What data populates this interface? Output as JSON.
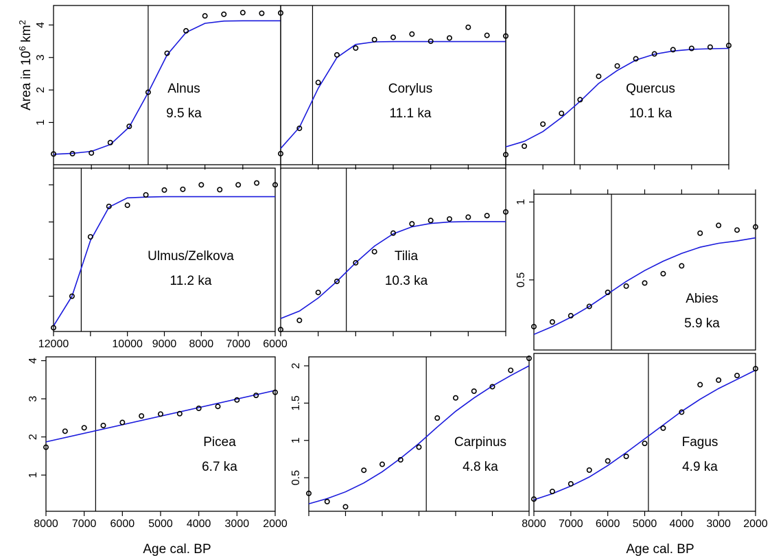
{
  "figure": {
    "ylabel_main": "Area in 10",
    "ylabel_exp": "6",
    "ylabel_unit": "km",
    "ylabel_unit_exp": "2",
    "xlabel_left": "Age cal. BP",
    "xlabel_right": "Age cal. BP"
  },
  "colors": {
    "fit": "#1a1adc",
    "points": "#000000",
    "frame": "#000000"
  },
  "chart_data": [
    {
      "type": "scatter",
      "taxon": "Alnus",
      "onset_label": "9.5 ka",
      "xlim": [
        12000,
        6000
      ],
      "ylim": [
        -0.3,
        4.6
      ],
      "yticks": [
        1,
        2,
        3,
        4
      ],
      "ytick_labels": [
        "1",
        "2",
        "3",
        "4"
      ],
      "xticks": [
        12000,
        11000,
        10000,
        9000,
        8000,
        7000,
        6000
      ],
      "xtick_labels": [],
      "onset": 9500,
      "observed": {
        "x": [
          12000,
          11500,
          11000,
          10500,
          10000,
          9500,
          9000,
          8500,
          8000,
          7500,
          7000,
          6500,
          6000
        ],
        "y": [
          0.03,
          0.04,
          0.06,
          0.38,
          0.88,
          1.93,
          3.13,
          3.82,
          4.28,
          4.33,
          4.38,
          4.36,
          4.37
        ]
      },
      "fitted": {
        "x": [
          12000,
          11500,
          11000,
          10500,
          10000,
          9500,
          9000,
          8500,
          8000,
          7500,
          7000,
          6500,
          6000
        ],
        "y": [
          0.02,
          0.05,
          0.11,
          0.32,
          0.86,
          1.92,
          3.08,
          3.77,
          4.05,
          4.12,
          4.13,
          4.13,
          4.13
        ]
      }
    },
    {
      "type": "scatter",
      "taxon": "Corylus",
      "onset_label": "11.1 ka",
      "xlim": [
        12000,
        6000
      ],
      "ylim": [
        -0.3,
        4.6
      ],
      "yticks": [
        1,
        2,
        3,
        4
      ],
      "ytick_labels": [],
      "xticks": [
        12000,
        11000,
        10000,
        9000,
        8000,
        7000,
        6000
      ],
      "xtick_labels": [],
      "onset": 11150,
      "observed": {
        "x": [
          12000,
          11500,
          11000,
          10500,
          10000,
          9500,
          9000,
          8500,
          8000,
          7500,
          7000,
          6500,
          6000
        ],
        "y": [
          0.04,
          0.82,
          2.23,
          3.08,
          3.29,
          3.55,
          3.62,
          3.72,
          3.5,
          3.6,
          3.93,
          3.68,
          3.66
        ]
      },
      "fitted": {
        "x": [
          12000,
          11500,
          11000,
          10500,
          10000,
          9500,
          9000,
          8500,
          8000,
          7500,
          7000,
          6500,
          6000
        ],
        "y": [
          0.2,
          0.85,
          2.05,
          3.0,
          3.4,
          3.48,
          3.49,
          3.49,
          3.49,
          3.49,
          3.49,
          3.49,
          3.49
        ]
      }
    },
    {
      "type": "scatter",
      "taxon": "Quercus",
      "onset_label": "10.1 ka",
      "xlim": [
        12000,
        6000
      ],
      "ylim": [
        -0.3,
        4.6
      ],
      "yticks": [
        1,
        2,
        3,
        4
      ],
      "ytick_labels": [],
      "xticks": [
        12000,
        11000,
        10000,
        9000,
        8000,
        7000,
        6000
      ],
      "xtick_labels": [],
      "onset": 10150,
      "observed": {
        "x": [
          12000,
          11500,
          11000,
          10500,
          10000,
          9500,
          9000,
          8500,
          8000,
          7500,
          7000,
          6500,
          6000
        ],
        "y": [
          0.01,
          0.27,
          0.95,
          1.28,
          1.7,
          2.42,
          2.74,
          2.96,
          3.11,
          3.24,
          3.28,
          3.32,
          3.37
        ]
      },
      "fitted": {
        "x": [
          12000,
          11500,
          11000,
          10500,
          10000,
          9500,
          9000,
          8500,
          8000,
          7500,
          7000,
          6500,
          6000
        ],
        "y": [
          0.25,
          0.42,
          0.72,
          1.15,
          1.65,
          2.2,
          2.6,
          2.92,
          3.1,
          3.2,
          3.25,
          3.27,
          3.28
        ]
      }
    },
    {
      "type": "scatter",
      "taxon": "Ulmus/Zelkova",
      "onset_label": "11.2 ka",
      "xlim": [
        12000,
        6000
      ],
      "ylim": [
        0.05,
        4.45
      ],
      "yticks": [
        1,
        2,
        3,
        4
      ],
      "ytick_labels": [],
      "xticks": [
        12000,
        11000,
        10000,
        9000,
        8000,
        7000,
        6000
      ],
      "xtick_labels": [
        "12000",
        "",
        "10000",
        "9000",
        "8000",
        "7000",
        "6000"
      ],
      "onset": 11250,
      "observed": {
        "x": [
          12000,
          11500,
          11000,
          10500,
          10000,
          9500,
          9000,
          8500,
          8000,
          7500,
          7000,
          6500,
          6000
        ],
        "y": [
          0.15,
          1.0,
          2.6,
          3.42,
          3.45,
          3.73,
          3.86,
          3.88,
          4.0,
          3.87,
          4.0,
          4.05,
          4.0
        ]
      },
      "fitted": {
        "x": [
          12000,
          11500,
          11000,
          10500,
          10000,
          9500,
          9000,
          8500,
          8000,
          7500,
          7000,
          6500,
          6000
        ],
        "y": [
          0.2,
          1.0,
          2.5,
          3.4,
          3.65,
          3.67,
          3.68,
          3.68,
          3.68,
          3.68,
          3.68,
          3.68,
          3.68
        ]
      }
    },
    {
      "type": "scatter",
      "taxon": "Tilia",
      "onset_label": "10.3 ka",
      "xlim": [
        12000,
        6000
      ],
      "ylim": [
        0.05,
        4.45
      ],
      "yticks": [
        1,
        2,
        3,
        4
      ],
      "ytick_labels": [],
      "xticks": [
        12000,
        11000,
        10000,
        9000,
        8000,
        7000,
        6000
      ],
      "xtick_labels": [],
      "onset": 10250,
      "observed": {
        "x": [
          12000,
          11500,
          11000,
          10500,
          10000,
          9500,
          9000,
          8500,
          8000,
          7500,
          7000,
          6500,
          6000
        ],
        "y": [
          0.1,
          0.35,
          1.1,
          1.4,
          1.9,
          2.2,
          2.7,
          2.95,
          3.04,
          3.08,
          3.13,
          3.17,
          3.27
        ]
      },
      "fitted": {
        "x": [
          12000,
          11500,
          11000,
          10500,
          10000,
          9500,
          9000,
          8500,
          8000,
          7500,
          7000,
          6500,
          6000
        ],
        "y": [
          0.4,
          0.6,
          0.95,
          1.4,
          1.9,
          2.35,
          2.68,
          2.87,
          2.96,
          3.0,
          3.01,
          3.01,
          3.01
        ]
      }
    },
    {
      "type": "scatter",
      "taxon": "Abies",
      "onset_label": "5.9 ka",
      "xlim": [
        8000,
        2000
      ],
      "ylim": [
        0.05,
        1.05
      ],
      "yticks": [
        0.5,
        1
      ],
      "ytick_labels": [
        "0.5",
        "1"
      ],
      "xticks": [
        8000,
        7000,
        6000,
        5000,
        4000,
        3000,
        2000
      ],
      "xtick_labels": [],
      "onset": 5900,
      "observed": {
        "x": [
          8000,
          7500,
          7000,
          6500,
          6000,
          5500,
          5000,
          4500,
          4000,
          3500,
          3000,
          2500,
          2000
        ],
        "y": [
          0.2,
          0.23,
          0.27,
          0.33,
          0.42,
          0.46,
          0.48,
          0.54,
          0.59,
          0.8,
          0.85,
          0.82,
          0.84
        ]
      },
      "fitted": {
        "x": [
          8000,
          7500,
          7000,
          6500,
          6000,
          5500,
          5000,
          4500,
          4000,
          3500,
          3000,
          2500,
          2000
        ],
        "y": [
          0.15,
          0.2,
          0.26,
          0.33,
          0.41,
          0.49,
          0.56,
          0.62,
          0.67,
          0.71,
          0.735,
          0.75,
          0.77
        ]
      }
    },
    {
      "type": "scatter",
      "taxon": "Picea",
      "onset_label": "6.7 ka",
      "xlim": [
        8000,
        2000
      ],
      "ylim": [
        0.05,
        4.1
      ],
      "yticks": [
        1,
        2,
        3,
        4
      ],
      "ytick_labels": [
        "1",
        "2",
        "3",
        "4"
      ],
      "xticks": [
        8000,
        7000,
        6000,
        5000,
        4000,
        3000,
        2000
      ],
      "xtick_labels": [
        "8000",
        "7000",
        "6000",
        "5000",
        "4000",
        "3000",
        "2000"
      ],
      "onset": 6700,
      "observed": {
        "x": [
          8000,
          7500,
          7000,
          6500,
          6000,
          5500,
          5000,
          4500,
          4000,
          3500,
          3000,
          2500,
          2000
        ],
        "y": [
          1.73,
          2.15,
          2.24,
          2.3,
          2.38,
          2.55,
          2.6,
          2.61,
          2.75,
          2.8,
          2.97,
          3.09,
          3.17
        ]
      },
      "fitted": {
        "x": [
          8000,
          2000
        ],
        "y": [
          1.87,
          3.22
        ]
      }
    },
    {
      "type": "scatter",
      "taxon": "Carpinus",
      "onset_label": "4.8 ka",
      "xlim": [
        8000,
        2000
      ],
      "ylim": [
        0.05,
        2.12
      ],
      "yticks": [
        0.5,
        1,
        1.5,
        2
      ],
      "ytick_labels": [
        "0.5",
        "1",
        "1.5",
        "2"
      ],
      "xticks": [
        8000,
        7000,
        6000,
        5000,
        4000,
        3000,
        2000
      ],
      "xtick_labels": [],
      "onset": 4800,
      "observed": {
        "x": [
          8000,
          7500,
          7000,
          6500,
          6000,
          5500,
          5000,
          4500,
          4000,
          3500,
          3000,
          2500,
          2000
        ],
        "y": [
          0.29,
          0.18,
          0.11,
          0.6,
          0.68,
          0.74,
          0.91,
          1.3,
          1.57,
          1.66,
          1.72,
          1.94,
          2.1
        ]
      },
      "fitted": {
        "x": [
          8000,
          7500,
          7000,
          6500,
          6000,
          5500,
          5000,
          4500,
          4000,
          3500,
          3000,
          2500,
          2000
        ],
        "y": [
          0.15,
          0.22,
          0.31,
          0.43,
          0.58,
          0.76,
          0.96,
          1.18,
          1.39,
          1.57,
          1.73,
          1.87,
          2.0
        ]
      }
    },
    {
      "type": "scatter",
      "taxon": "Fagus",
      "onset_label": "4.9 ka",
      "xlim": [
        8000,
        2000
      ],
      "ylim": [
        0.05,
        2.12
      ],
      "yticks": [
        0.5,
        1,
        1.5,
        2
      ],
      "ytick_labels": [],
      "xticks": [
        8000,
        7000,
        6000,
        5000,
        4000,
        3000,
        2000
      ],
      "xtick_labels": [
        "8000",
        "7000",
        "6000",
        "5000",
        "4000",
        "3000",
        "2000"
      ],
      "onset": 4900,
      "observed": {
        "x": [
          8000,
          7500,
          7000,
          6500,
          6000,
          5500,
          5000,
          4500,
          4000,
          3500,
          3000,
          2500,
          2000
        ],
        "y": [
          0.21,
          0.31,
          0.41,
          0.59,
          0.71,
          0.77,
          0.94,
          1.14,
          1.35,
          1.71,
          1.77,
          1.83,
          1.92
        ]
      },
      "fitted": {
        "x": [
          8000,
          7500,
          7000,
          6500,
          6000,
          5500,
          5000,
          4500,
          4000,
          3500,
          3000,
          2500,
          2000
        ],
        "y": [
          0.2,
          0.28,
          0.38,
          0.5,
          0.65,
          0.82,
          1.0,
          1.18,
          1.36,
          1.52,
          1.66,
          1.78,
          1.9
        ]
      }
    }
  ]
}
